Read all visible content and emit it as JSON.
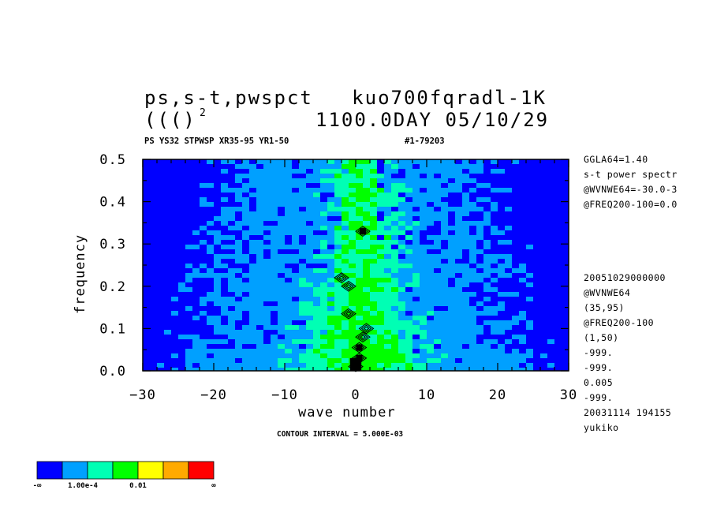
{
  "header": {
    "title_line1": "ps,s-t,pwspct   kuo700fqradl-1K",
    "title_line2_left": "((()",
    "title_line2_sup": "2",
    "title_line2_right": "1100.0DAY 05/10/29",
    "subtitle_left": "PS YS32 STPWSP XR35-95 YR1-50",
    "subtitle_right": "#1-79203"
  },
  "side_info_top": [
    "GGLA64=1.40",
    "s-t power spectr",
    "@WVNWE64=-30.0-3",
    "@FREQ200-100=0.0"
  ],
  "side_info_bottom": [
    "20051029000000",
    "@WVNWE64",
    "(35,95)",
    "@FREQ200-100",
    "(1,50)",
    "-999.",
    "-999.",
    "0.005",
    "-999.",
    "20031114 194155",
    "yukiko"
  ],
  "contour_note": "CONTOUR INTERVAL = 5.000E-03",
  "colorbar": {
    "colors": [
      "#0000ff",
      "#00a0ff",
      "#00ffb4",
      "#00ff00",
      "#ffff00",
      "#ffaa00",
      "#ff0000"
    ],
    "labels": [
      "-∞",
      "1.00e-4",
      "0.01",
      "∞"
    ]
  },
  "chart_data": {
    "type": "heatmap",
    "xlabel": "wave number",
    "ylabel": "frequency",
    "xlim": [
      -30,
      30
    ],
    "ylim": [
      0.0,
      0.5
    ],
    "x_ticks": [
      "−30",
      "−20",
      "−10",
      "0",
      "10",
      "20",
      "30"
    ],
    "y_ticks": [
      "0.0",
      "0.1",
      "0.2",
      "0.3",
      "0.4",
      "0.5"
    ],
    "field_description_levels": [
      "blue",
      "light-blue",
      "cyan",
      "green",
      "black-contours"
    ],
    "bands": [
      {
        "level": "cyan",
        "x_center": 1,
        "half_width_at": [
          {
            "y": 0.0,
            "w": 10
          },
          {
            "y": 0.25,
            "w": 5
          },
          {
            "y": 0.5,
            "w": 4
          }
        ]
      },
      {
        "level": "green",
        "x_center": 1,
        "half_width_at": [
          {
            "y": 0.0,
            "w": 6
          },
          {
            "y": 0.25,
            "w": 2
          },
          {
            "y": 0.5,
            "w": 1.5
          }
        ]
      },
      {
        "level": "light-blue",
        "x_center": 0,
        "half_width_at": [
          {
            "y": 0.0,
            "w": 23
          },
          {
            "y": 0.25,
            "w": 20
          },
          {
            "y": 0.5,
            "w": 17
          }
        ]
      }
    ],
    "contour_spots": [
      {
        "x": 1,
        "y": 0.33
      },
      {
        "x": -2,
        "y": 0.22
      },
      {
        "x": -1,
        "y": 0.2
      },
      {
        "x": -1,
        "y": 0.135
      },
      {
        "x": 1.5,
        "y": 0.1
      },
      {
        "x": 1,
        "y": 0.08
      },
      {
        "x": 0.5,
        "y": 0.055
      },
      {
        "x": 0.5,
        "y": 0.03
      },
      {
        "x": 0,
        "y": 0.01
      }
    ]
  }
}
